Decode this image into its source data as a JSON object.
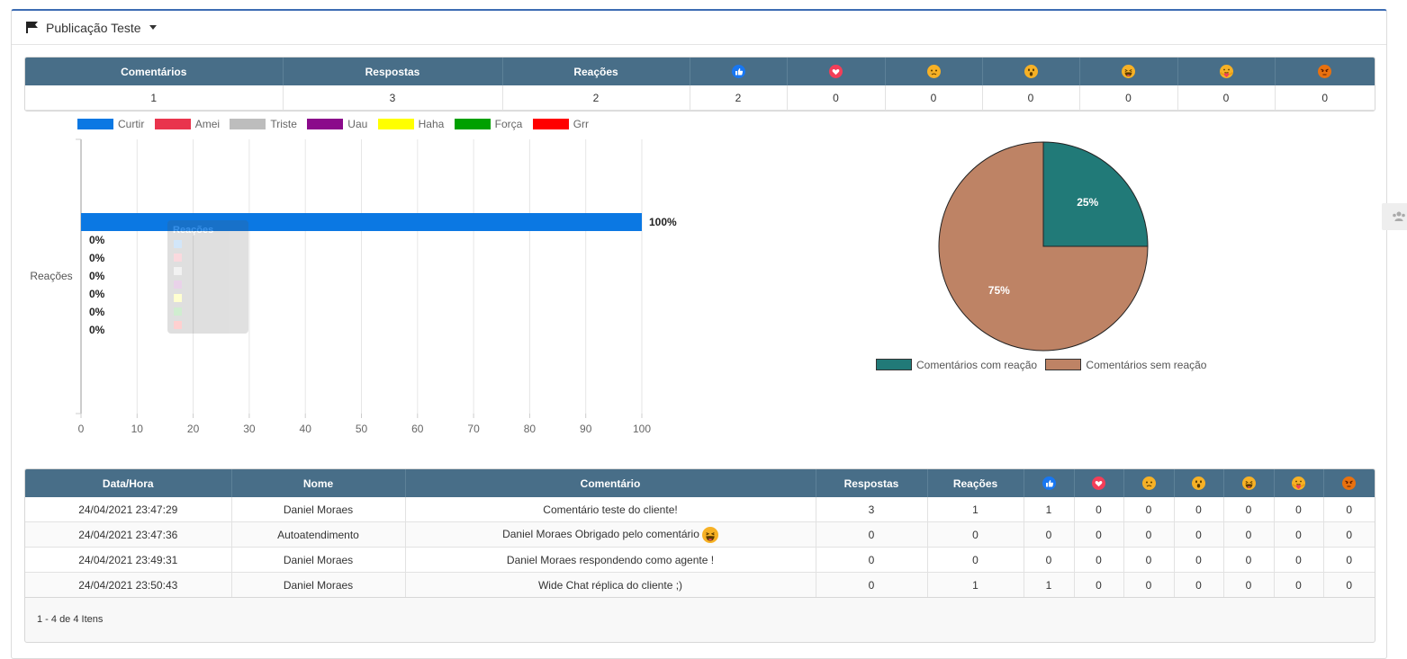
{
  "header": {
    "title": "Publicação Teste"
  },
  "summary": {
    "columns": [
      "Comentários",
      "Respostas",
      "Reações"
    ],
    "values": [
      "1",
      "3",
      "2",
      "2",
      "0",
      "0",
      "0",
      "0",
      "0",
      "0"
    ]
  },
  "reactions": [
    {
      "name": "like-icon",
      "color": "#1877f2"
    },
    {
      "name": "love-icon",
      "color": "#f33e58"
    },
    {
      "name": "sad-icon",
      "color": "#f7b125"
    },
    {
      "name": "wow-icon",
      "color": "#f7b125"
    },
    {
      "name": "haha-icon",
      "color": "#f7b125"
    },
    {
      "name": "care-icon",
      "color": "#f7b125"
    },
    {
      "name": "angry-icon",
      "color": "#e9710f"
    }
  ],
  "chart_data": [
    {
      "type": "bar",
      "orientation": "horizontal",
      "category": "Reações",
      "series": [
        {
          "name": "Curtir",
          "value": 100,
          "label": "100%",
          "color": "#0b78e3"
        },
        {
          "name": "Amei",
          "value": 0,
          "label": "0%",
          "color": "#e9344d"
        },
        {
          "name": "Triste",
          "value": 0,
          "label": "0%",
          "color": "#bdbdbd"
        },
        {
          "name": "Uau",
          "value": 0,
          "label": "0%",
          "color": "#8b0a8b"
        },
        {
          "name": "Haha",
          "value": 0,
          "label": "0%",
          "color": "#ffff00"
        },
        {
          "name": "Força",
          "value": 0,
          "label": "0%",
          "color": "#00a000"
        },
        {
          "name": "Grr",
          "value": 0,
          "label": "0%",
          "color": "#ff0000"
        }
      ],
      "xlim": [
        0,
        100
      ],
      "xticks": [
        "0",
        "10",
        "20",
        "30",
        "40",
        "50",
        "60",
        "70",
        "80",
        "90",
        "100"
      ],
      "ylabel": "Reações",
      "grid": true,
      "legend": "top"
    },
    {
      "type": "pie",
      "slices": [
        {
          "name": "Comentários com reação",
          "value": 25,
          "label": "25%",
          "color": "#217a78"
        },
        {
          "name": "Comentários sem reação",
          "value": 75,
          "label": "75%",
          "color": "#be8365"
        }
      ],
      "legend": "bottom"
    }
  ],
  "detail": {
    "columns": [
      "Data/Hora",
      "Nome",
      "Comentário",
      "Respostas",
      "Reações"
    ],
    "rows": [
      [
        "24/04/2021 23:47:29",
        "Daniel Moraes",
        "Comentário teste do cliente!",
        "3",
        "1",
        "1",
        "0",
        "0",
        "0",
        "0",
        "0",
        "0"
      ],
      [
        "24/04/2021 23:47:36",
        "Autoatendimento",
        "Daniel Moraes Obrigado pelo comentário",
        "0",
        "0",
        "0",
        "0",
        "0",
        "0",
        "0",
        "0",
        "0"
      ],
      [
        "24/04/2021 23:49:31",
        "Daniel Moraes",
        "Daniel Moraes respondendo como agente !",
        "0",
        "0",
        "0",
        "0",
        "0",
        "0",
        "0",
        "0",
        "0"
      ],
      [
        "24/04/2021 23:50:43",
        "Daniel Moraes",
        "Wide Chat réplica do cliente ;)",
        "0",
        "1",
        "1",
        "0",
        "0",
        "0",
        "0",
        "0",
        "0"
      ]
    ],
    "pager": "1 - 4 de 4 Itens"
  }
}
